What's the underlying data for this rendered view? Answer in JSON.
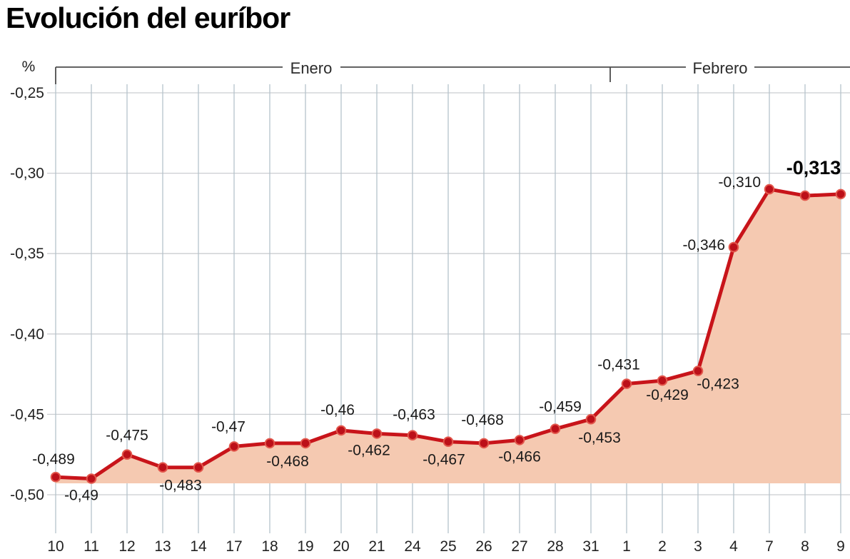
{
  "title": "Evolución del euríbor",
  "chart_data": {
    "type": "line",
    "title": "Evolución del euríbor",
    "unit_label": "%",
    "legend": null,
    "grid": true,
    "ylim": [
      -0.5,
      -0.25
    ],
    "y_axis": {
      "ticks": [
        {
          "label": "-0,25",
          "value": -0.25
        },
        {
          "label": "-0,30",
          "value": -0.3
        },
        {
          "label": "-0,35",
          "value": -0.35
        },
        {
          "label": "-0,40",
          "value": -0.4
        },
        {
          "label": "-0,45",
          "value": -0.45
        },
        {
          "label": "-0,50",
          "value": -0.5
        }
      ]
    },
    "month_groups": [
      {
        "label": "Enero",
        "first_day": "10",
        "last_day": "31"
      },
      {
        "label": "Febrero",
        "first_day": "1",
        "last_day": "9"
      }
    ],
    "x_tick_labels": [
      "10",
      "11",
      "12",
      "13",
      "14",
      "17",
      "18",
      "19",
      "20",
      "21",
      "24",
      "25",
      "26",
      "27",
      "28",
      "31",
      "1",
      "2",
      "3",
      "4",
      "7",
      "8",
      "9"
    ],
    "series": [
      {
        "name": "Euríbor",
        "points": [
          {
            "x": "10",
            "month": "Enero",
            "value": -0.489,
            "label": "-0,489",
            "pos": "above",
            "dx": -3,
            "dy": -2
          },
          {
            "x": "11",
            "month": "Enero",
            "value": -0.49,
            "label": "-0,49",
            "pos": "below",
            "dx": -14,
            "dy": 0
          },
          {
            "x": "12",
            "month": "Enero",
            "value": -0.475,
            "label": "-0,475",
            "pos": "above",
            "dx": 0,
            "dy": -4
          },
          {
            "x": "13",
            "month": "Enero",
            "value": -0.483,
            "label": "-0,483",
            "pos": "below",
            "dx": 25,
            "dy": 2
          },
          {
            "x": "14",
            "month": "Enero",
            "value": -0.483,
            "label": null
          },
          {
            "x": "17",
            "month": "Enero",
            "value": -0.47,
            "label": "-0,47",
            "pos": "above",
            "dx": -8,
            "dy": -5
          },
          {
            "x": "18",
            "month": "Enero",
            "value": -0.468,
            "label": "-0,468",
            "pos": "below",
            "dx": 25,
            "dy": 2
          },
          {
            "x": "19",
            "month": "Enero",
            "value": -0.468,
            "label": null
          },
          {
            "x": "20",
            "month": "Enero",
            "value": -0.46,
            "label": "-0,46",
            "pos": "above",
            "dx": -5,
            "dy": -6
          },
          {
            "x": "21",
            "month": "Enero",
            "value": -0.462,
            "label": "-0,462",
            "pos": "below",
            "dx": -11,
            "dy": 0
          },
          {
            "x": "24",
            "month": "Enero",
            "value": -0.463,
            "label": "-0,463",
            "pos": "above",
            "dx": 2,
            "dy": -6
          },
          {
            "x": "25",
            "month": "Enero",
            "value": -0.467,
            "label": "-0,467",
            "pos": "below",
            "dx": -6,
            "dy": 2
          },
          {
            "x": "26",
            "month": "Enero",
            "value": -0.468,
            "label": "-0,468",
            "pos": "above",
            "dx": -2,
            "dy": -10
          },
          {
            "x": "27",
            "month": "Enero",
            "value": -0.466,
            "label": "-0,466",
            "pos": "below",
            "dx": 0,
            "dy": 0
          },
          {
            "x": "28",
            "month": "Enero",
            "value": -0.459,
            "label": "-0,459",
            "pos": "above",
            "dx": 7,
            "dy": -8
          },
          {
            "x": "31",
            "month": "Enero",
            "value": -0.453,
            "label": "-0,453",
            "pos": "below",
            "dx": 12,
            "dy": 3
          },
          {
            "x": "1",
            "month": "Febrero",
            "value": -0.431,
            "label": "-0,431",
            "pos": "above",
            "dx": -11,
            "dy": -4
          },
          {
            "x": "2",
            "month": "Febrero",
            "value": -0.429,
            "label": "-0,429",
            "pos": "below",
            "dx": 7,
            "dy": -3
          },
          {
            "x": "3",
            "month": "Febrero",
            "value": -0.423,
            "label": "-0,423",
            "pos": "below",
            "dx": 28,
            "dy": -5
          },
          {
            "x": "4",
            "month": "Febrero",
            "value": -0.346,
            "label": "-0,346",
            "pos": "left",
            "dx": 0,
            "dy": 0
          },
          {
            "x": "7",
            "month": "Febrero",
            "value": -0.31,
            "label": "-0,310",
            "pos": "left",
            "dx": 0,
            "dy": -7
          },
          {
            "x": "8",
            "month": "Febrero",
            "value": -0.314,
            "label": null
          },
          {
            "x": "9",
            "month": "Febrero",
            "value": -0.313,
            "label": "-0,313",
            "pos": "above",
            "dx": -38,
            "dy": -12,
            "bold": true
          }
        ]
      }
    ],
    "colors": {
      "line": "#c8141a",
      "marker": "#bc1019",
      "marker_ring": "#e2574c",
      "fill": "#f5c9b1",
      "grid_vertical": "#b5c2cb",
      "grid_horizontal": "#cbced1",
      "bracket": "#4d4d4d",
      "text": "#1a1a1a"
    }
  }
}
